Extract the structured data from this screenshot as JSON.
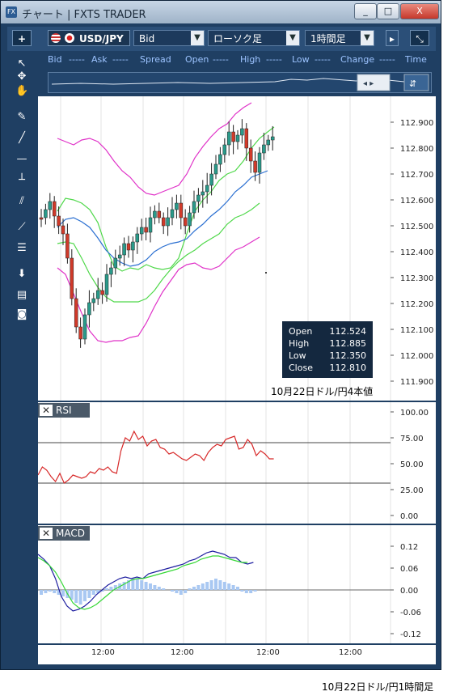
{
  "window": {
    "title": "チャート | FXTS TRADER",
    "minimize": "_",
    "maximize": "□",
    "close": "X"
  },
  "toolbar": {
    "symbol": "USD/JPY",
    "price_type": "Bid",
    "chart_type": "ローソク足",
    "timeframe": "1時間足"
  },
  "info_bar": {
    "labels": [
      "Bid",
      "Ask",
      "Spread",
      "Open",
      "High",
      "Low",
      "Change",
      "Time"
    ],
    "dashes": "-----"
  },
  "sidebar_icons": [
    "add-icon",
    "cursor-icon",
    "crosshair-icon",
    "hand-icon",
    "pencil-icon",
    "line-icon",
    "hline-icon",
    "vline-icon",
    "channel-icon",
    "fib-fan-icon",
    "fib-retrace-icon",
    "arrow-down-icon",
    "list-icon",
    "camera-icon"
  ],
  "price_axis": [
    "112.900",
    "112.800",
    "112.700",
    "112.600",
    "112.500",
    "112.400",
    "112.300",
    "112.200",
    "112.100",
    "112.000",
    "111.900"
  ],
  "ohlc_box": {
    "rows": [
      {
        "label": "Open",
        "value": "112.524"
      },
      {
        "label": "High",
        "value": "112.885"
      },
      {
        "label": "Low",
        "value": "112.350"
      },
      {
        "label": "Close",
        "value": "112.810"
      }
    ]
  },
  "price_caption": "10月22日ドル/円4本値",
  "rsi": {
    "title": "RSI",
    "axis": [
      "100.00",
      "75.00",
      "50.00",
      "25.00",
      "0.00"
    ]
  },
  "macd": {
    "title": "MACD",
    "axis": [
      "0.12",
      "0.06",
      "0.00",
      "-0.06",
      "-0.12"
    ]
  },
  "time_axis": [
    "12:00",
    "12:00",
    "12:00",
    "12:00"
  ],
  "footer_caption": "10月22日ドル/円1時間足",
  "colors": {
    "frame": "#1f3f63",
    "bollinger_outer": "#e032c8",
    "bollinger_inner": "#4fd84a",
    "ma": "#2a6fd1",
    "rsi": "#d72828",
    "macd_line": "#1e1ea0",
    "signal_line": "#36d836",
    "histogram": "#a9c8f2"
  }
}
